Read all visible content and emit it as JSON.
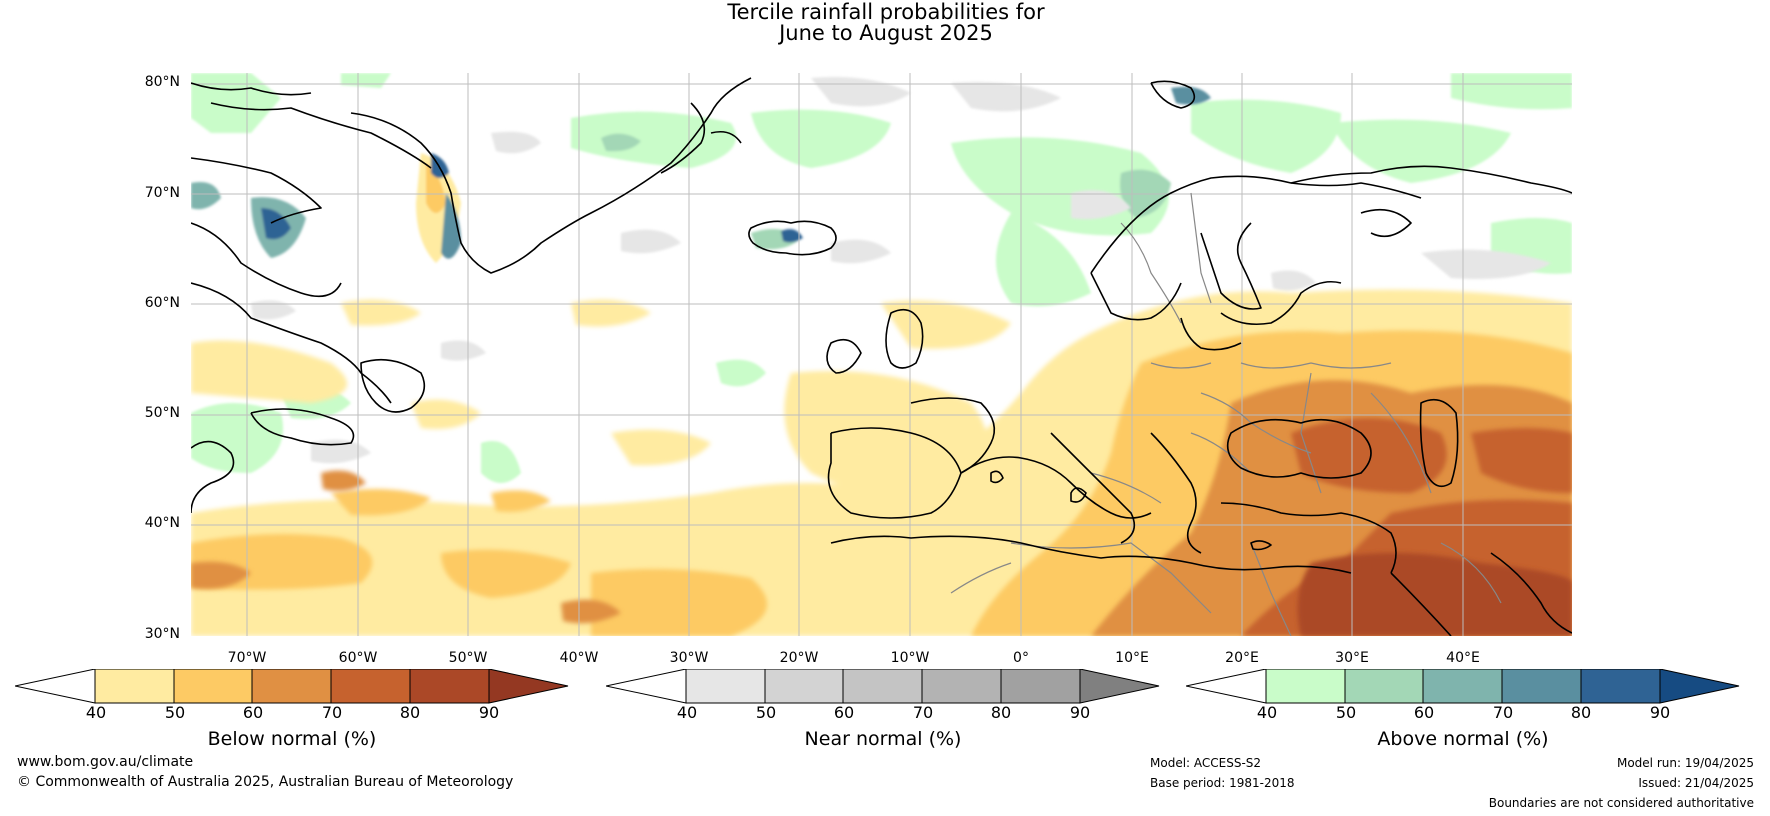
{
  "title": {
    "line1": "Tercile rainfall probabilities for",
    "line2": "June to August 2025"
  },
  "lat_ticks": [
    "80°N",
    "70°N",
    "60°N",
    "50°N",
    "40°N",
    "30°N"
  ],
  "lon_ticks": [
    "70°W",
    "60°W",
    "50°W",
    "40°W",
    "30°W",
    "20°W",
    "10°W",
    "0°",
    "10°E",
    "20°E",
    "30°E",
    "40°E"
  ],
  "colorbars": [
    {
      "label": "Below normal (%)",
      "ticks": [
        "40",
        "50",
        "60",
        "70",
        "80",
        "90"
      ],
      "colors": [
        "#ffffff",
        "#ffeba1",
        "#fdca64",
        "#e09043",
        "#c6622e",
        "#ab4827",
        "#943822"
      ]
    },
    {
      "label": "Near normal (%)",
      "ticks": [
        "40",
        "50",
        "60",
        "70",
        "80",
        "90"
      ],
      "colors": [
        "#ffffff",
        "#e6e6e6",
        "#d3d3d3",
        "#c4c4c4",
        "#b3b3b3",
        "#a1a1a1",
        "#808080"
      ]
    },
    {
      "label": "Above normal (%)",
      "ticks": [
        "40",
        "50",
        "60",
        "70",
        "80",
        "90"
      ],
      "colors": [
        "#ffffff",
        "#c9fcc9",
        "#a3d7b6",
        "#7fb4ad",
        "#5a8fa0",
        "#2f6394",
        "#164b82"
      ]
    }
  ],
  "footer": {
    "website": "www.bom.gov.au/climate",
    "copyright": "© Commonwealth of Australia 2025, Australian Bureau of Meteorology",
    "model": "Model: ACCESS-S2",
    "base_period": "Base period: 1981-2018",
    "model_run": "Model run: 19/04/2025",
    "issued": "Issued: 21/04/2025",
    "disclaimer": "Boundaries are not considered authoritative"
  }
}
